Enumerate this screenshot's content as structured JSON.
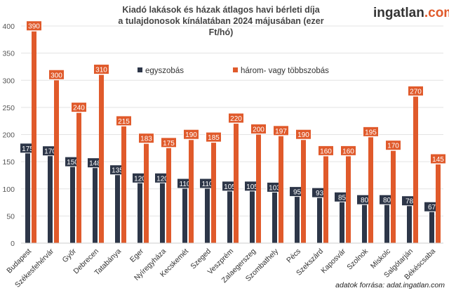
{
  "title_line1": "Kiadó lakások és házak átlagos havi bérleti díja",
  "title_line2": "a tulajdonosok kínálatában 2024 májusában (ezer Ft/hó)",
  "logo": {
    "main": "ingatlan",
    "suffix": ".com"
  },
  "source": "adatok forrása: adat.ingatlan.com",
  "chart_data": {
    "type": "bar",
    "title": "Kiadó lakások és házak átlagos havi bérleti díja a tulajdonosok kínálatában 2024 májusában (ezer Ft/hó)",
    "categories": [
      "Budapest",
      "Székesfehérvár",
      "Győr",
      "Debrecen",
      "Tatabánya",
      "Eger",
      "Nyíregyháza",
      "Kecskemét",
      "Szeged",
      "Veszprém",
      "Zalaegerszeg",
      "Szombathely",
      "Pécs",
      "Szekszárd",
      "Kaposvár",
      "Szolnok",
      "Miskolc",
      "Salgótarján",
      "Békéscsaba"
    ],
    "series": [
      {
        "name": "egyszobás",
        "color": "#2d3648",
        "values": [
          175,
          170,
          150,
          148,
          135,
          120,
          120,
          110,
          110,
          105,
          105,
          103,
          95,
          93,
          85,
          80,
          80,
          78,
          67
        ]
      },
      {
        "name": "három- vagy többszobás",
        "color": "#e05a2b",
        "values": [
          390,
          300,
          240,
          310,
          215,
          183,
          175,
          190,
          185,
          220,
          200,
          197,
          190,
          160,
          160,
          195,
          170,
          270,
          145
        ]
      }
    ],
    "yticks": [
      0,
      50,
      100,
      150,
      200,
      250,
      300,
      350,
      400
    ],
    "ylim": [
      0,
      400
    ],
    "grid": true,
    "legend": "top-center",
    "data_labels": true
  }
}
